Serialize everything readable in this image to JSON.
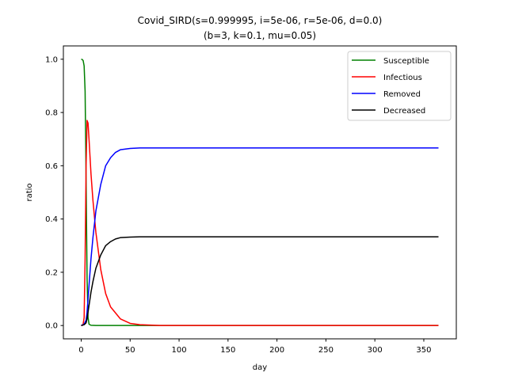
{
  "chart_data": {
    "type": "line",
    "title_line1": "Covid_SIRD(s=0.999995, i=5e-06, r=5e-06, d=0.0)",
    "title_line2": "(b=3, k=0.1, mu=0.05)",
    "xlabel": "day",
    "ylabel": "ratio",
    "xlim": [
      -18.2,
      383.2
    ],
    "ylim": [
      -0.05,
      1.05
    ],
    "xticks": [
      0,
      50,
      100,
      150,
      200,
      250,
      300,
      350
    ],
    "xtick_labels": [
      "0",
      "50",
      "100",
      "150",
      "200",
      "250",
      "300",
      "350"
    ],
    "yticks": [
      0.0,
      0.2,
      0.4,
      0.6,
      0.8,
      1.0
    ],
    "ytick_labels": [
      "0.0",
      "0.2",
      "0.4",
      "0.6",
      "0.8",
      "1.0"
    ],
    "grid": false,
    "legend_position": "top-right",
    "series": [
      {
        "name": "Susceptible",
        "color": "#008000",
        "x": [
          0,
          1,
          2,
          3,
          4,
          5,
          6,
          7,
          8,
          10,
          15,
          20,
          50,
          100,
          200,
          365
        ],
        "y": [
          1.0,
          0.999,
          0.995,
          0.975,
          0.88,
          0.55,
          0.18,
          0.03,
          0.005,
          0.001,
          0.0,
          0.0,
          0.0,
          0.0,
          0.0,
          0.0
        ]
      },
      {
        "name": "Infectious",
        "color": "#ff0000",
        "x": [
          0,
          1,
          2,
          3,
          4,
          5,
          6,
          7,
          8,
          10,
          12,
          15,
          20,
          25,
          30,
          40,
          50,
          60,
          80,
          100,
          200,
          365
        ],
        "y": [
          0.0,
          0.0,
          0.005,
          0.03,
          0.25,
          0.6,
          0.77,
          0.76,
          0.7,
          0.57,
          0.47,
          0.35,
          0.21,
          0.12,
          0.07,
          0.025,
          0.008,
          0.003,
          0.0,
          0.0,
          0.0,
          0.0
        ]
      },
      {
        "name": "Removed",
        "color": "#0000ff",
        "x": [
          0,
          3,
          5,
          6,
          8,
          10,
          12,
          15,
          20,
          25,
          30,
          35,
          40,
          50,
          60,
          80,
          100,
          200,
          365
        ],
        "y": [
          0.0,
          0.005,
          0.02,
          0.05,
          0.15,
          0.25,
          0.33,
          0.43,
          0.53,
          0.6,
          0.63,
          0.65,
          0.66,
          0.665,
          0.667,
          0.667,
          0.667,
          0.667,
          0.667
        ]
      },
      {
        "name": "Decreased",
        "color": "#000000",
        "x": [
          0,
          3,
          5,
          6,
          8,
          10,
          12,
          15,
          20,
          25,
          30,
          35,
          40,
          50,
          60,
          80,
          100,
          200,
          365
        ],
        "y": [
          0.0,
          0.003,
          0.01,
          0.025,
          0.075,
          0.125,
          0.165,
          0.215,
          0.265,
          0.3,
          0.315,
          0.325,
          0.33,
          0.332,
          0.333,
          0.333,
          0.333,
          0.333,
          0.333
        ]
      }
    ]
  }
}
